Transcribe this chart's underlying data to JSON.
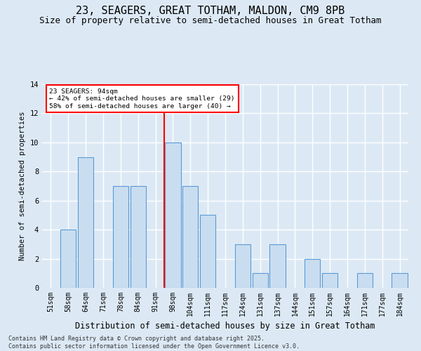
{
  "title": "23, SEAGERS, GREAT TOTHAM, MALDON, CM9 8PB",
  "subtitle": "Size of property relative to semi-detached houses in Great Totham",
  "xlabel": "Distribution of semi-detached houses by size in Great Totham",
  "ylabel": "Number of semi-detached properties",
  "footnote": "Contains HM Land Registry data © Crown copyright and database right 2025.\nContains public sector information licensed under the Open Government Licence v3.0.",
  "categories": [
    "51sqm",
    "58sqm",
    "64sqm",
    "71sqm",
    "78sqm",
    "84sqm",
    "91sqm",
    "98sqm",
    "104sqm",
    "111sqm",
    "117sqm",
    "124sqm",
    "131sqm",
    "137sqm",
    "144sqm",
    "151sqm",
    "157sqm",
    "164sqm",
    "171sqm",
    "177sqm",
    "184sqm"
  ],
  "values": [
    0,
    4,
    9,
    0,
    7,
    7,
    0,
    10,
    7,
    5,
    0,
    3,
    1,
    3,
    0,
    2,
    1,
    0,
    1,
    0,
    1
  ],
  "bar_color": "#c9ddf0",
  "bar_edge_color": "#5b9bd5",
  "redline_index": 7,
  "annotation_title": "23 SEAGERS: 94sqm",
  "annotation_line1": "← 42% of semi-detached houses are smaller (29)",
  "annotation_line2": "58% of semi-detached houses are larger (40) →",
  "ylim": [
    0,
    14
  ],
  "yticks": [
    0,
    2,
    4,
    6,
    8,
    10,
    12,
    14
  ],
  "background_color": "#dce9f5",
  "plot_bg_color": "#dce9f5",
  "grid_color": "#ffffff",
  "title_fontsize": 11,
  "subtitle_fontsize": 9,
  "tick_fontsize": 7,
  "ylabel_fontsize": 7.5,
  "xlabel_fontsize": 8.5,
  "footnote_fontsize": 6
}
